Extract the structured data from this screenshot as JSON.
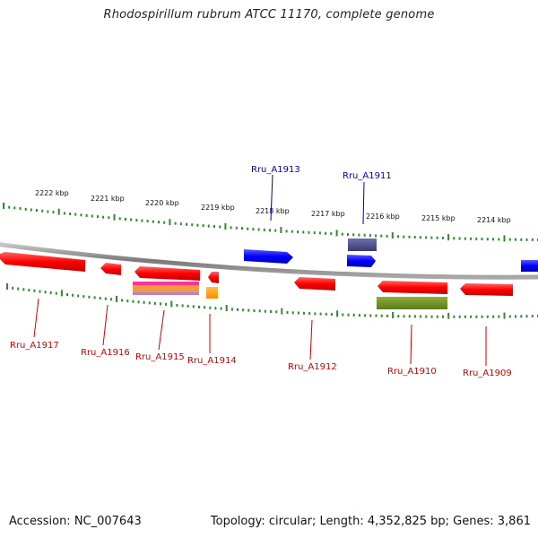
{
  "title": "Rhodospirillum rubrum ATCC 11170, complete genome",
  "footer": {
    "accession": "Accession: NC_007643",
    "topology": "Topology: circular; Length: 4,352,825 bp; Genes: 3,861"
  },
  "colors": {
    "backbone": "#8c8c8c",
    "tick": "#2e8b2e",
    "forward_gene": "#0000ff",
    "reverse_gene": "#ff0000",
    "forward_label": "#0000aa",
    "reverse_label": "#cc0000",
    "orange_feature": "#ff9900",
    "olive_feature": "#6b8e23",
    "slate_feature": "#4a4a8a",
    "pink_feature": "#ff3399",
    "gold_feature": "#e6a020"
  },
  "kbp_labels": [
    "2222 kbp",
    "2221 kbp",
    "2220 kbp",
    "2219 kbp",
    "2218 kbp",
    "2217 kbp",
    "2216 kbp",
    "2215 kbp",
    "2214 kbp"
  ],
  "gene_labels": [
    {
      "name": "Rru_A1917",
      "strand": "reverse"
    },
    {
      "name": "Rru_A1916",
      "strand": "reverse"
    },
    {
      "name": "Rru_A1915",
      "strand": "reverse"
    },
    {
      "name": "Rru_A1914",
      "strand": "reverse"
    },
    {
      "name": "Rru_A1913",
      "strand": "forward"
    },
    {
      "name": "Rru_A1912",
      "strand": "reverse"
    },
    {
      "name": "Rru_A1911",
      "strand": "forward"
    },
    {
      "name": "Rru_A1910",
      "strand": "reverse"
    },
    {
      "name": "Rru_A1909",
      "strand": "reverse"
    }
  ]
}
